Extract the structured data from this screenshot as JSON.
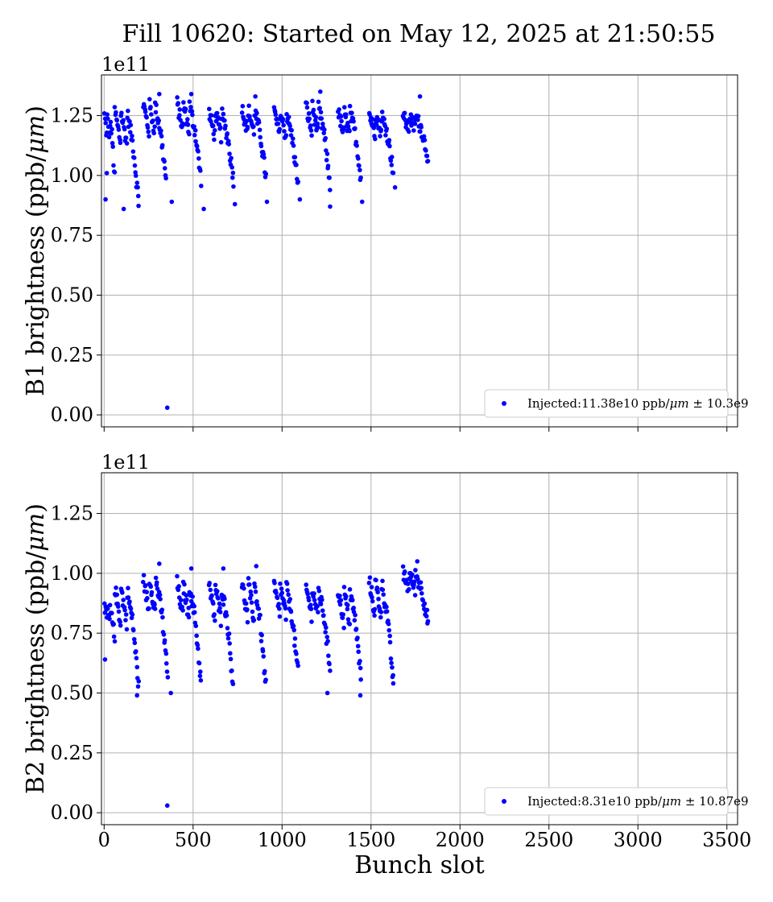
{
  "figure": {
    "title": "Fill 10620: Started on May 12, 2025 at 21:50:55"
  },
  "chart_data": [
    {
      "type": "scatter",
      "id": "b1",
      "title": "",
      "xlabel": "",
      "ylabel": "B1 brightness (ppb/μm)",
      "ylabel_main": "B1 brightness (ppb/",
      "ylabel_unit": "μm",
      "ylabel_close": ")",
      "scale_label": "1e11",
      "xlim": [
        -15,
        3560
      ],
      "ylim": [
        -0.05,
        1.42
      ],
      "x_ticks": [
        0,
        500,
        1000,
        1500,
        2000,
        2500,
        3000,
        3500
      ],
      "x_tick_labels_visible": false,
      "y_ticks": [
        0.0,
        0.25,
        0.5,
        0.75,
        1.0,
        1.25
      ],
      "y_tick_labels": [
        "0.00",
        "0.25",
        "0.50",
        "0.75",
        "1.00",
        "1.25"
      ],
      "grid": true,
      "legend_position": "lower-right",
      "marker_color": "#0000ff",
      "series": [
        {
          "name": "Injected:11.38e10 ppb/μm ± 10.3e9",
          "legend_prefix": "Injected:11.38e10 ppb/",
          "legend_unit": "μm",
          "legend_suffix": " ± 10.3e9",
          "trains": [
            {
              "x0": 2,
              "x1": 60,
              "hi": 1.25,
              "lo": 0.98
            },
            {
              "x0": 60,
              "x1": 195,
              "hi": 1.27,
              "lo": 0.88
            },
            {
              "x0": 220,
              "x1": 350,
              "hi": 1.3,
              "lo": 0.97
            },
            {
              "x0": 410,
              "x1": 545,
              "hi": 1.3,
              "lo": 0.98
            },
            {
              "x0": 590,
              "x1": 730,
              "hi": 1.26,
              "lo": 0.97
            },
            {
              "x0": 775,
              "x1": 910,
              "hi": 1.28,
              "lo": 0.99
            },
            {
              "x0": 955,
              "x1": 1090,
              "hi": 1.27,
              "lo": 0.96
            },
            {
              "x0": 1135,
              "x1": 1270,
              "hi": 1.29,
              "lo": 0.96
            },
            {
              "x0": 1315,
              "x1": 1445,
              "hi": 1.27,
              "lo": 0.98
            },
            {
              "x0": 1490,
              "x1": 1625,
              "hi": 1.26,
              "lo": 1.02
            },
            {
              "x0": 1680,
              "x1": 1820,
              "hi": 1.25,
              "lo": 1.08
            }
          ],
          "points": [
            {
              "x": 8,
              "y": 0.9
            },
            {
              "x": 15,
              "y": 1.01
            },
            {
              "x": 110,
              "y": 0.86
            },
            {
              "x": 355,
              "y": 0.03
            },
            {
              "x": 380,
              "y": 0.89
            },
            {
              "x": 560,
              "y": 0.86
            },
            {
              "x": 735,
              "y": 0.88
            },
            {
              "x": 915,
              "y": 0.89
            },
            {
              "x": 1100,
              "y": 0.9
            },
            {
              "x": 1270,
              "y": 0.87
            },
            {
              "x": 1450,
              "y": 0.89
            },
            {
              "x": 1635,
              "y": 0.95
            },
            {
              "x": 1215,
              "y": 1.35
            },
            {
              "x": 310,
              "y": 1.34
            },
            {
              "x": 490,
              "y": 1.34
            },
            {
              "x": 1775,
              "y": 1.33
            },
            {
              "x": 850,
              "y": 1.33
            },
            {
              "x": 1820,
              "y": 1.06
            }
          ]
        }
      ]
    },
    {
      "type": "scatter",
      "id": "b2",
      "title": "",
      "xlabel": "Bunch slot",
      "ylabel": "B2 brightness (ppb/μm)",
      "ylabel_main": "B2 brightness (ppb/",
      "ylabel_unit": "μm",
      "ylabel_close": ")",
      "scale_label": "1e11",
      "xlim": [
        -15,
        3560
      ],
      "ylim": [
        -0.05,
        1.42
      ],
      "x_ticks": [
        0,
        500,
        1000,
        1500,
        2000,
        2500,
        3000,
        3500
      ],
      "x_tick_labels": [
        "0",
        "500",
        "1000",
        "1500",
        "2000",
        "2500",
        "3000",
        "3500"
      ],
      "x_tick_labels_visible": true,
      "y_ticks": [
        0.0,
        0.25,
        0.5,
        0.75,
        1.0,
        1.25
      ],
      "y_tick_labels": [
        "0.00",
        "0.25",
        "0.50",
        "0.75",
        "1.00",
        "1.25"
      ],
      "grid": true,
      "legend_position": "lower-right",
      "marker_color": "#0000ff",
      "series": [
        {
          "name": "Injected:8.31e10 ppb/μm ± 10.87e9",
          "legend_prefix": "Injected:8.31e10 ppb/",
          "legend_unit": "μm",
          "legend_suffix": " ± 10.87e9",
          "trains": [
            {
              "x0": 2,
              "x1": 60,
              "hi": 0.85,
              "lo": 0.72
            },
            {
              "x0": 60,
              "x1": 195,
              "hi": 0.94,
              "lo": 0.52
            },
            {
              "x0": 220,
              "x1": 360,
              "hi": 0.98,
              "lo": 0.55
            },
            {
              "x0": 410,
              "x1": 545,
              "hi": 0.96,
              "lo": 0.54
            },
            {
              "x0": 590,
              "x1": 725,
              "hi": 0.95,
              "lo": 0.54
            },
            {
              "x0": 775,
              "x1": 910,
              "hi": 0.96,
              "lo": 0.52
            },
            {
              "x0": 955,
              "x1": 1090,
              "hi": 0.95,
              "lo": 0.58
            },
            {
              "x0": 1135,
              "x1": 1270,
              "hi": 0.94,
              "lo": 0.6
            },
            {
              "x0": 1315,
              "x1": 1445,
              "hi": 0.93,
              "lo": 0.55
            },
            {
              "x0": 1490,
              "x1": 1625,
              "hi": 0.97,
              "lo": 0.55
            },
            {
              "x0": 1680,
              "x1": 1820,
              "hi": 1.0,
              "lo": 0.8
            }
          ],
          "points": [
            {
              "x": 5,
              "y": 0.64
            },
            {
              "x": 355,
              "y": 0.03
            },
            {
              "x": 375,
              "y": 0.5
            },
            {
              "x": 185,
              "y": 0.49
            },
            {
              "x": 1255,
              "y": 0.5
            },
            {
              "x": 1440,
              "y": 0.49
            },
            {
              "x": 1625,
              "y": 0.54
            },
            {
              "x": 310,
              "y": 1.04
            },
            {
              "x": 490,
              "y": 1.02
            },
            {
              "x": 670,
              "y": 1.02
            },
            {
              "x": 855,
              "y": 1.03
            },
            {
              "x": 1760,
              "y": 1.05
            },
            {
              "x": 1820,
              "y": 0.8
            }
          ]
        }
      ]
    }
  ]
}
